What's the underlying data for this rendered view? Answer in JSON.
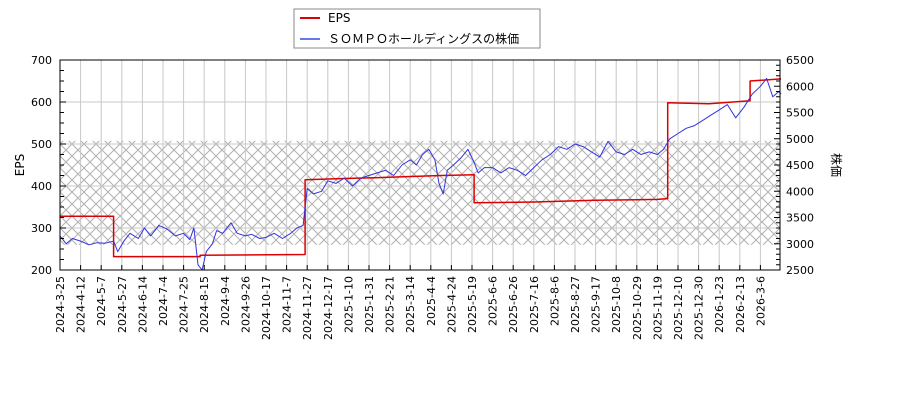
{
  "legend": {
    "items": [
      {
        "label": "EPS",
        "color": "#dd0000"
      },
      {
        "label": "ＳＯＭＰＯホールディングスの株価",
        "color": "#3333dd"
      }
    ]
  },
  "axes": {
    "left_title": "EPS",
    "right_title": "株価",
    "left_ticks": [
      200,
      300,
      400,
      500,
      600,
      700
    ],
    "right_ticks": [
      2500,
      3000,
      3500,
      4000,
      4500,
      5000,
      5500,
      6000,
      6500
    ]
  },
  "chart_data": {
    "type": "line",
    "title": "",
    "xlabel": "",
    "ylabel": "EPS",
    "y2label": "株価",
    "ylim": [
      200,
      700
    ],
    "y2lim": [
      2500,
      6500
    ],
    "grid": true,
    "legend_position": "top-center",
    "x_ticks": [
      "2024-3-25",
      "2024-4-12",
      "2024-5-7",
      "2024-5-27",
      "2024-6-14",
      "2024-7-4",
      "2024-7-25",
      "2024-8-15",
      "2024-9-4",
      "2024-9-26",
      "2024-10-17",
      "2024-11-7",
      "2024-11-27",
      "2024-12-17",
      "2025-1-10",
      "2025-1-31",
      "2025-2-21",
      "2025-3-14",
      "2025-4-4",
      "2025-4-24",
      "2025-5-19",
      "2025-6-6",
      "2025-6-26",
      "2025-7-16",
      "2025-8-6",
      "2025-8-27",
      "2025-9-17",
      "2025-10-8",
      "2025-10-29",
      "2025-11-19",
      "2025-12-10",
      "2025-12-30",
      "2026-1-23",
      "2026-2-13",
      "2026-3-6"
    ],
    "shaded_band": {
      "y2_from": 2980,
      "y2_to": 4960,
      "pattern": "crosshatch"
    },
    "series": [
      {
        "name": "EPS",
        "axis": "left",
        "color": "#dd0000",
        "step": true,
        "points": [
          [
            0,
            328
          ],
          [
            2.6,
            328
          ],
          [
            2.6,
            232
          ],
          [
            6.8,
            232
          ],
          [
            6.8,
            235
          ],
          [
            11.9,
            237
          ],
          [
            11.9,
            415
          ],
          [
            14,
            418
          ],
          [
            15.5,
            420
          ],
          [
            18.5,
            425
          ],
          [
            20.1,
            427
          ],
          [
            20.1,
            360
          ],
          [
            23,
            362
          ],
          [
            26,
            366
          ],
          [
            29,
            368
          ],
          [
            29.5,
            370
          ],
          [
            29.5,
            598
          ],
          [
            31.5,
            596
          ],
          [
            33.5,
            603
          ],
          [
            33.5,
            650
          ],
          [
            35,
            655
          ]
        ]
      },
      {
        "name": "ＳＯＭＰＯホールディングスの株価",
        "axis": "right",
        "color": "#3333dd",
        "step": false,
        "points": [
          [
            0,
            3150
          ],
          [
            0.3,
            3000
          ],
          [
            0.6,
            3100
          ],
          [
            1,
            3050
          ],
          [
            1.4,
            2980
          ],
          [
            1.8,
            3020
          ],
          [
            2.2,
            3010
          ],
          [
            2.6,
            3050
          ],
          [
            2.8,
            2850
          ],
          [
            3.1,
            3050
          ],
          [
            3.4,
            3200
          ],
          [
            3.8,
            3100
          ],
          [
            4.1,
            3300
          ],
          [
            4.4,
            3150
          ],
          [
            4.8,
            3350
          ],
          [
            5.2,
            3280
          ],
          [
            5.6,
            3150
          ],
          [
            6,
            3200
          ],
          [
            6.3,
            3080
          ],
          [
            6.5,
            3300
          ],
          [
            6.7,
            2600
          ],
          [
            6.9,
            2500
          ],
          [
            7.1,
            2850
          ],
          [
            7.4,
            3000
          ],
          [
            7.6,
            3250
          ],
          [
            7.9,
            3200
          ],
          [
            8.3,
            3400
          ],
          [
            8.6,
            3200
          ],
          [
            9,
            3150
          ],
          [
            9.3,
            3180
          ],
          [
            9.7,
            3100
          ],
          [
            10,
            3120
          ],
          [
            10.4,
            3200
          ],
          [
            10.8,
            3100
          ],
          [
            11.2,
            3200
          ],
          [
            11.5,
            3300
          ],
          [
            11.8,
            3350
          ],
          [
            12,
            4050
          ],
          [
            12.3,
            3950
          ],
          [
            12.7,
            4000
          ],
          [
            13,
            4200
          ],
          [
            13.4,
            4150
          ],
          [
            13.8,
            4250
          ],
          [
            14.2,
            4100
          ],
          [
            14.6,
            4250
          ],
          [
            15,
            4300
          ],
          [
            15.4,
            4350
          ],
          [
            15.8,
            4400
          ],
          [
            16.2,
            4300
          ],
          [
            16.6,
            4500
          ],
          [
            17,
            4600
          ],
          [
            17.3,
            4500
          ],
          [
            17.6,
            4700
          ],
          [
            17.9,
            4800
          ],
          [
            18.2,
            4600
          ],
          [
            18.4,
            4150
          ],
          [
            18.6,
            3950
          ],
          [
            18.8,
            4400
          ],
          [
            19.1,
            4500
          ],
          [
            19.5,
            4650
          ],
          [
            19.8,
            4800
          ],
          [
            20.1,
            4550
          ],
          [
            20.3,
            4350
          ],
          [
            20.6,
            4450
          ],
          [
            21,
            4450
          ],
          [
            21.4,
            4350
          ],
          [
            21.8,
            4450
          ],
          [
            22.2,
            4400
          ],
          [
            22.6,
            4300
          ],
          [
            23,
            4450
          ],
          [
            23.4,
            4600
          ],
          [
            23.8,
            4700
          ],
          [
            24.2,
            4850
          ],
          [
            24.6,
            4800
          ],
          [
            25,
            4900
          ],
          [
            25.4,
            4850
          ],
          [
            25.8,
            4750
          ],
          [
            26.2,
            4650
          ],
          [
            26.6,
            4950
          ],
          [
            27,
            4750
          ],
          [
            27.4,
            4700
          ],
          [
            27.8,
            4800
          ],
          [
            28.2,
            4700
          ],
          [
            28.6,
            4750
          ],
          [
            29,
            4700
          ],
          [
            29.3,
            4800
          ],
          [
            29.6,
            5000
          ],
          [
            30,
            5100
          ],
          [
            30.4,
            5200
          ],
          [
            30.8,
            5250
          ],
          [
            31.2,
            5350
          ],
          [
            31.6,
            5450
          ],
          [
            32,
            5550
          ],
          [
            32.4,
            5650
          ],
          [
            32.8,
            5400
          ],
          [
            33.2,
            5600
          ],
          [
            33.6,
            5850
          ],
          [
            34,
            6000
          ],
          [
            34.3,
            6150
          ],
          [
            34.6,
            5800
          ],
          [
            34.9,
            5900
          ],
          [
            35,
            5850
          ]
        ]
      }
    ]
  }
}
